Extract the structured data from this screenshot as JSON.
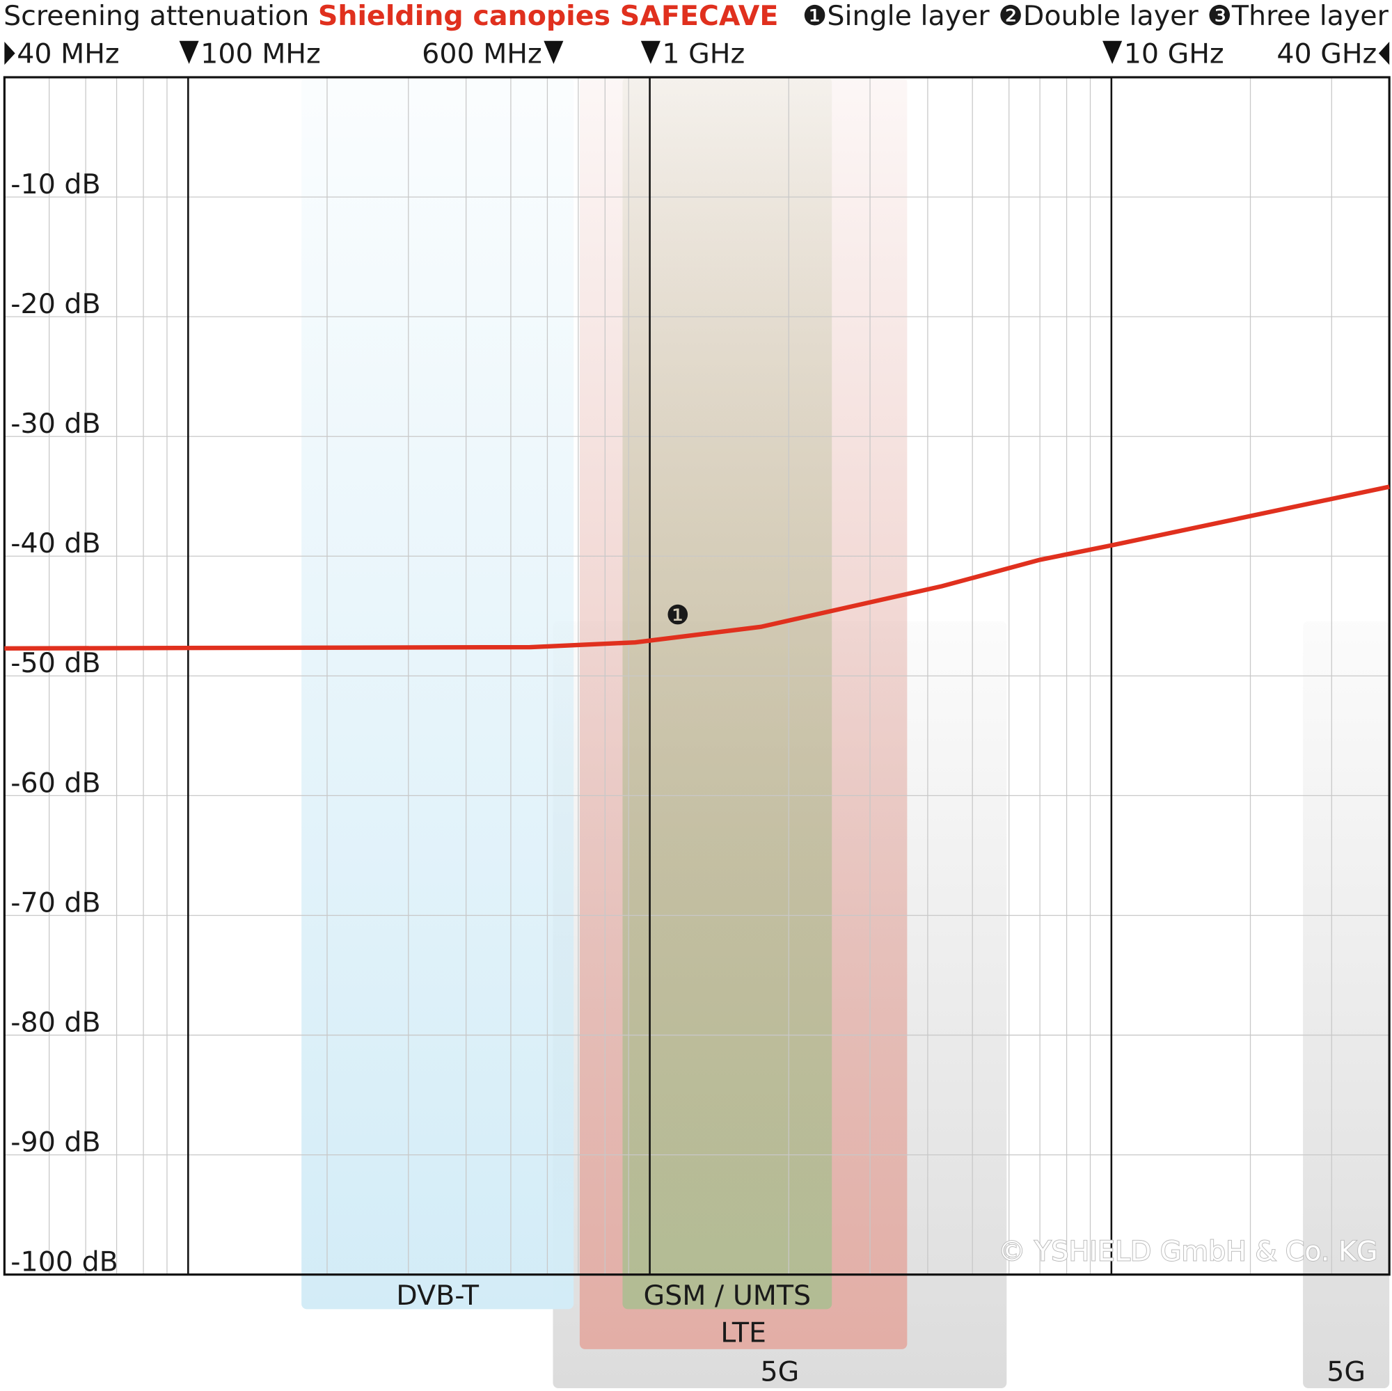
{
  "chart_data": {
    "type": "line",
    "title": "Screening attenuation ",
    "subtitle": "Shielding canopies SAFECAVE",
    "subtitle_color": "#e0301e",
    "x_log": true,
    "xlim": [
      40,
      40000
    ],
    "xticks": [
      {
        "value": 40,
        "label": "40 MHz"
      },
      {
        "value": 100,
        "label": "100 MHz"
      },
      {
        "value": 600,
        "label": "600 MHz"
      },
      {
        "value": 1000,
        "label": "1 GHz"
      },
      {
        "value": 10000,
        "label": "10 GHz"
      },
      {
        "value": 40000,
        "label": "40 GHz"
      }
    ],
    "x_minor_grid": [
      50,
      60,
      70,
      80,
      90,
      200,
      300,
      400,
      500,
      600,
      700,
      800,
      900,
      2000,
      3000,
      4000,
      5000,
      6000,
      7000,
      8000,
      9000,
      20000,
      30000
    ],
    "ylim": [
      -100,
      0
    ],
    "yticks": [
      {
        "value": -10,
        "label": "-10 dB"
      },
      {
        "value": -20,
        "label": "-20 dB"
      },
      {
        "value": -30,
        "label": "-30 dB"
      },
      {
        "value": -40,
        "label": "-40 dB"
      },
      {
        "value": -50,
        "label": "-50 dB"
      },
      {
        "value": -60,
        "label": "-60 dB"
      },
      {
        "value": -70,
        "label": "-70 dB"
      },
      {
        "value": -80,
        "label": "-80 dB"
      },
      {
        "value": -90,
        "label": "-90 dB"
      },
      {
        "value": -100,
        "label": "-100 dB"
      }
    ],
    "grid": true,
    "x": [
      40,
      550,
      930,
      1740,
      4300,
      7000,
      10000,
      40000
    ],
    "series": [
      {
        "name": "Single layer",
        "marker": "❶",
        "color": "#e0301e",
        "values": [
          -47.7,
          -47.6,
          -47.2,
          -45.9,
          -42.5,
          -40.3,
          -39.1,
          -34.2
        ]
      }
    ],
    "legend_extra": [
      {
        "marker": "❷",
        "name": "Double layer"
      },
      {
        "marker": "❸",
        "name": "Three layer"
      }
    ],
    "annotations": [
      {
        "text": "❶",
        "x": 1150,
        "y": -44.8
      }
    ],
    "bands": [
      {
        "name": "5G",
        "range": [
          617,
          5930
        ],
        "color": "#dcdcdc"
      },
      {
        "name": "LTE",
        "range": [
          705,
          3610
        ],
        "color": "#e3aea6"
      },
      {
        "name": "DVB-T",
        "range": [
          176,
          684
        ],
        "color": "#d3ecf7"
      },
      {
        "name": "GSM / UMTS",
        "range": [
          873,
          2480
        ],
        "color": "#b2bc94"
      },
      {
        "name": "5G",
        "range": [
          26000,
          40000
        ],
        "color": "#dcdcdc"
      }
    ],
    "copyright": "© YSHIELD GmbH & Co. KG"
  }
}
